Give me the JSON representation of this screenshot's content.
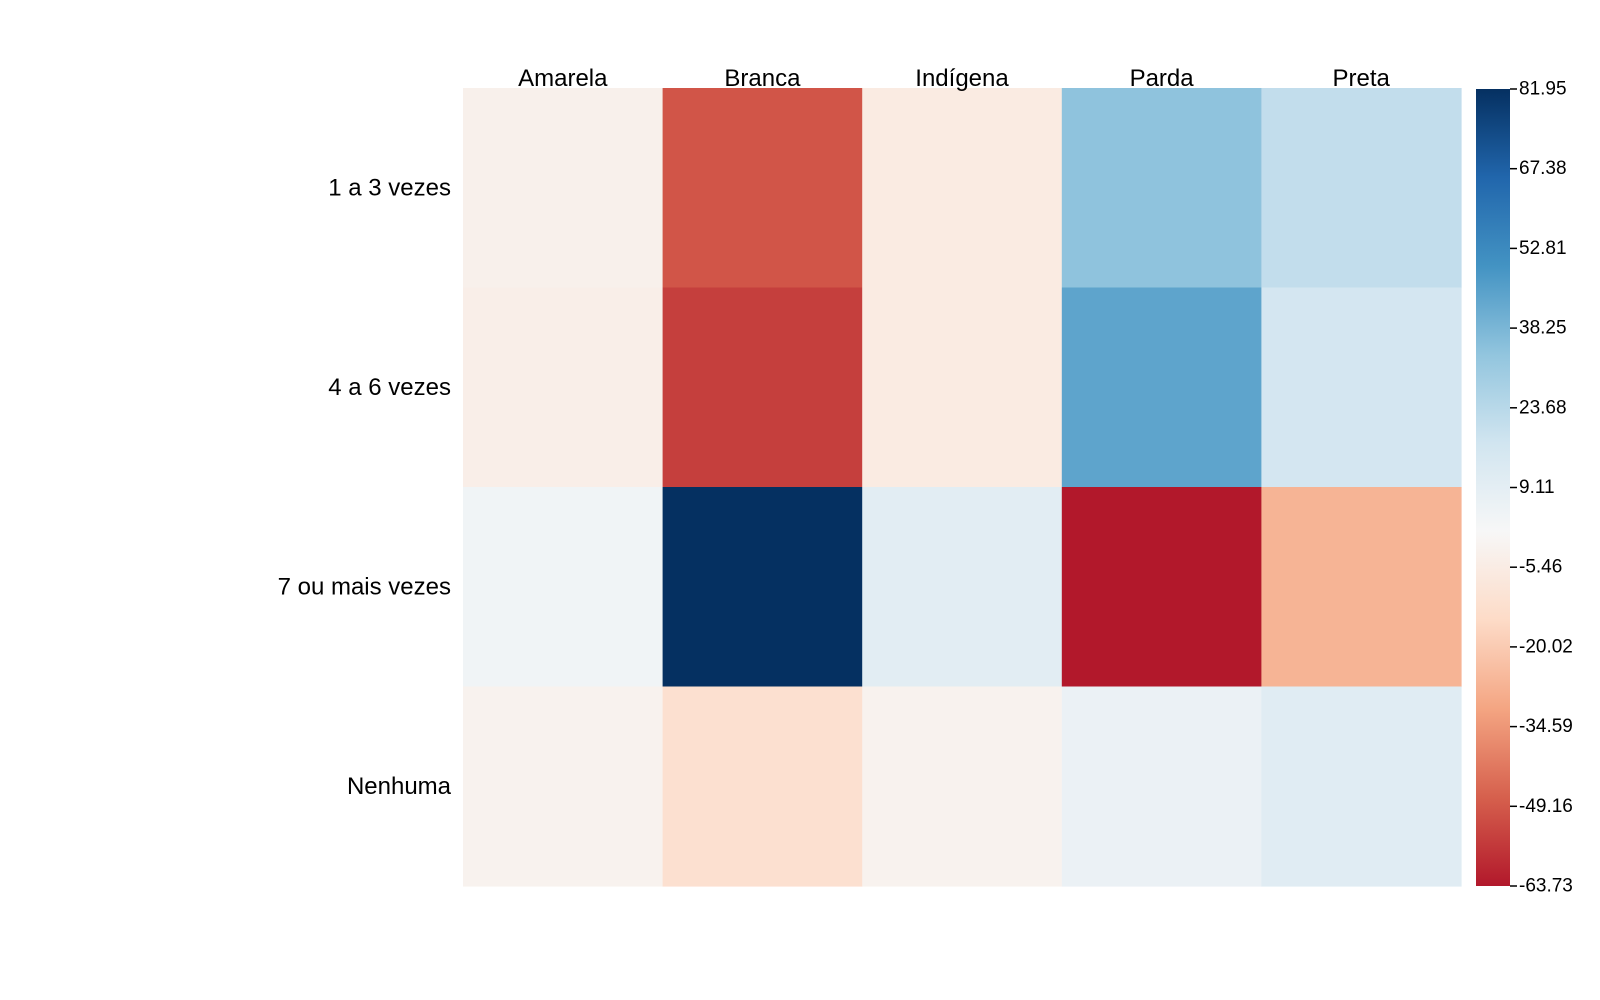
{
  "chart_data": {
    "type": "heatmap",
    "title": "",
    "xlabel": "",
    "ylabel": "",
    "columns": [
      "Amarela",
      "Branca",
      "Indígena",
      "Parda",
      "Preta"
    ],
    "rows": [
      "1 a 3 vezes",
      "4 a 6 vezes",
      "7 ou mais vezes",
      "Nenhuma"
    ],
    "values": [
      [
        -3,
        -50,
        -6,
        34,
        21
      ],
      [
        -4,
        -55,
        -6,
        44,
        16
      ],
      [
        4,
        81.95,
        10,
        -63.73,
        -27
      ],
      [
        -2,
        -12,
        -2,
        6,
        11
      ]
    ],
    "color_scale": {
      "min": -63.73,
      "max": 81.95,
      "ticks": [
        81.95,
        67.38,
        52.81,
        38.25,
        23.68,
        9.11,
        -5.46,
        -20.02,
        -34.59,
        -49.16,
        -63.73
      ],
      "tick_labels": [
        "81.95",
        "67.38",
        "52.81",
        "38.25",
        "23.68",
        "9.11",
        "-5.46",
        "-20.02",
        "-34.59",
        "-49.16",
        "-63.73"
      ],
      "palette": [
        "#b2182b",
        "#d6604d",
        "#f4a582",
        "#fddbc7",
        "#f7f7f7",
        "#d1e5f0",
        "#92c5de",
        "#4393c3",
        "#2166ac",
        "#053061"
      ],
      "legend_position": "right"
    }
  }
}
